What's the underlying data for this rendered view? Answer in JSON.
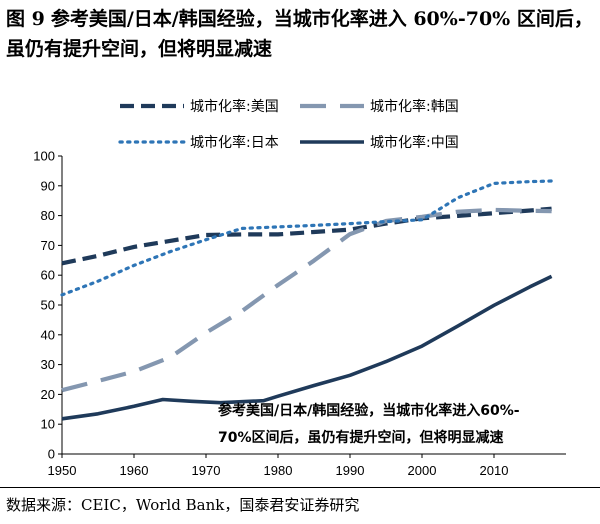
{
  "figure": {
    "number": "图 9",
    "title": "参考美国/日本/韩国经验，当城市化率进入 60%-70% 区间后，虽仍有提升空间，但将明显减速",
    "source": "数据来源：CEIC，World Bank，国泰君安证券研究"
  },
  "chart_data": {
    "type": "line",
    "title": "",
    "xlabel": "",
    "ylabel": "",
    "xlim": [
      1950,
      2020
    ],
    "ylim": [
      0,
      100
    ],
    "x_ticks": [
      1950,
      1960,
      1970,
      1980,
      1990,
      2000,
      2010
    ],
    "y_ticks": [
      0,
      10,
      20,
      30,
      40,
      50,
      60,
      70,
      80,
      90,
      100
    ],
    "grid": false,
    "legend_position": "top",
    "annotation": [
      "参考美国/日本/韩国经验，当城市化率进入60%-",
      "70%区间后，虽仍有提升空间，但将明显减速"
    ],
    "series": [
      {
        "name": "城市化率:美国",
        "style": "dashed",
        "color": "#1f3a5a",
        "x": [
          1950,
          1955,
          1960,
          1965,
          1970,
          1975,
          1980,
          1985,
          1990,
          1995,
          2000,
          2005,
          2010,
          2015,
          2018
        ],
        "y": [
          64.0,
          66.5,
          69.5,
          71.5,
          73.5,
          73.7,
          73.7,
          74.5,
          75.3,
          77.3,
          79.1,
          79.9,
          80.8,
          81.7,
          82.3
        ]
      },
      {
        "name": "城市化率:韩国",
        "style": "longdash",
        "color": "#8497b0",
        "x": [
          1950,
          1955,
          1960,
          1965,
          1970,
          1975,
          1980,
          1985,
          1990,
          1995,
          2000,
          2005,
          2010,
          2015,
          2018
        ],
        "y": [
          21.4,
          24.5,
          27.7,
          32.4,
          40.7,
          48.0,
          56.7,
          64.9,
          73.8,
          78.2,
          79.6,
          81.3,
          81.9,
          81.6,
          81.5
        ]
      },
      {
        "name": "城市化率:日本",
        "style": "dotted",
        "color": "#2e75b6",
        "x": [
          1950,
          1955,
          1960,
          1965,
          1970,
          1975,
          1980,
          1985,
          1990,
          1995,
          2000,
          2005,
          2010,
          2015,
          2018
        ],
        "y": [
          53.4,
          58.0,
          63.3,
          67.9,
          71.9,
          75.7,
          76.2,
          76.7,
          77.3,
          78.0,
          78.6,
          86.0,
          90.8,
          91.4,
          91.6
        ]
      },
      {
        "name": "城市化率:中国",
        "style": "solid",
        "color": "#1f3a5a",
        "x": [
          1950,
          1955,
          1960,
          1964,
          1968,
          1972,
          1978,
          1980,
          1985,
          1990,
          1995,
          2000,
          2005,
          2010,
          2015,
          2018
        ],
        "y": [
          11.8,
          13.5,
          16.0,
          18.3,
          17.7,
          17.2,
          17.9,
          19.4,
          23.0,
          26.4,
          31.0,
          36.2,
          43.0,
          49.9,
          56.1,
          59.6
        ]
      }
    ]
  }
}
